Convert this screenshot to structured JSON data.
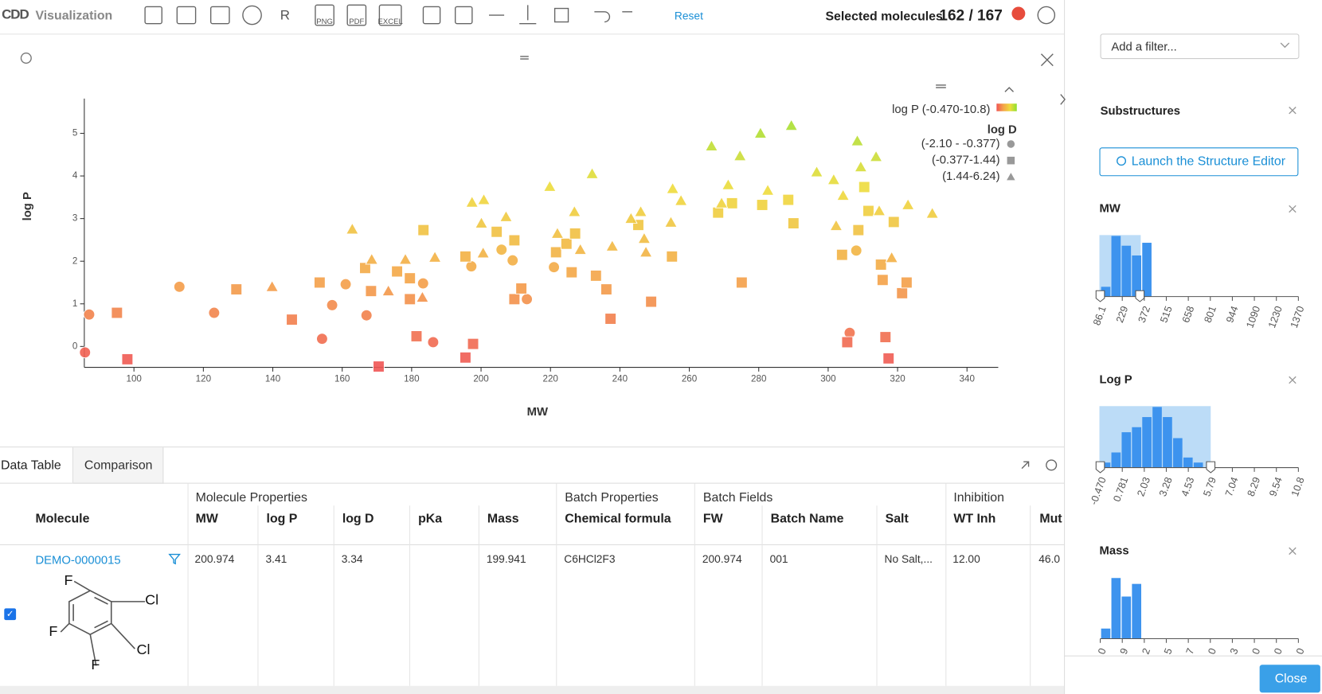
{
  "toolbar": {
    "logo": "CDD",
    "app": "Visualization",
    "buttons": [
      "R",
      "PNG",
      "PDF",
      "EXCEL"
    ],
    "reset": "Reset",
    "selected_label": "Selected molecules",
    "selection": "162 / 167"
  },
  "chart_data": {
    "type": "scatter",
    "xlabel": "MW",
    "ylabel": "log P",
    "xlim": [
      85.7,
      349
    ],
    "ylim": [
      -0.49,
      5.815
    ],
    "xticks": [
      100,
      120,
      140,
      160,
      180,
      200,
      220,
      240,
      260,
      280,
      300,
      320,
      340
    ],
    "yticks": [
      0,
      1,
      2,
      3,
      4,
      5
    ],
    "color_legend": "log P (-0.470-10.8)",
    "color_scale": [
      "#f05454",
      "#f4a448",
      "#eedc3c",
      "#8ee02e"
    ],
    "legend_title": "log D",
    "series": [
      {
        "name": "(-2.10 - -0.377)",
        "marker": "circle",
        "color": "#999999",
        "x": [
          85.9,
          87.1,
          113.1,
          123.1,
          154.2,
          157.1,
          161,
          167,
          183.3,
          186.2,
          197.2,
          205.9,
          209.1,
          213.2,
          221,
          306.2,
          308.1
        ],
        "values": [
          -0.14,
          0.75,
          1.4,
          0.79,
          0.18,
          0.97,
          1.46,
          0.73,
          1.48,
          0.1,
          1.88,
          2.27,
          2.02,
          1.11,
          1.86,
          0.32,
          2.25
        ]
      },
      {
        "name": "(-0.377-1.44)",
        "marker": "square",
        "color": "#999999",
        "x": [
          95.1,
          98.1,
          129.5,
          145.5,
          153.5,
          166.6,
          168.3,
          170.5,
          175.8,
          179.5,
          179.5,
          181.4,
          183.4,
          195.5,
          195.5,
          197.7,
          204.5,
          209.6,
          209.6,
          211.6,
          221.6,
          224.6,
          226.1,
          227.1,
          233.1,
          236.1,
          237.3,
          245.3,
          249,
          255,
          268.3,
          272.3,
          275.1,
          281,
          288.5,
          290,
          304,
          305.5,
          308.7,
          310.4,
          311.6,
          315.2,
          315.7,
          316.5,
          317.4,
          318.9,
          321.3,
          322.6
        ],
        "values": [
          0.79,
          -0.3,
          1.34,
          0.63,
          1.5,
          1.84,
          1.3,
          -0.47,
          1.76,
          1.6,
          1.11,
          0.24,
          2.73,
          2.11,
          -0.26,
          0.06,
          2.69,
          2.49,
          1.11,
          1.36,
          2.21,
          2.41,
          1.74,
          2.65,
          1.66,
          1.34,
          0.65,
          2.85,
          1.05,
          2.11,
          3.14,
          3.36,
          1.5,
          3.32,
          3.44,
          2.89,
          2.15,
          0.1,
          2.73,
          3.74,
          3.18,
          1.92,
          1.56,
          0.22,
          -0.28,
          2.92,
          1.25,
          1.5
        ]
      },
      {
        "name": "(1.44-6.24)",
        "marker": "triangle",
        "color": "#999999",
        "x": [
          139.8,
          162.9,
          168.5,
          173.3,
          178.2,
          183.1,
          186.7,
          197.4,
          200.8,
          200.1,
          200.6,
          207.2,
          219.8,
          222,
          226.9,
          228.6,
          232,
          237.8,
          243.2,
          246,
          247,
          247.5,
          254.7,
          255.2,
          257.6,
          266.4,
          269.3,
          271.2,
          274.6,
          280.5,
          282.6,
          289.4,
          296.7,
          301.6,
          308.4,
          313.8,
          309.4,
          304.3,
          302.3,
          314.7,
          318.3,
          323,
          330
        ],
        "values": [
          1.4,
          2.75,
          2.04,
          1.3,
          2.04,
          1.15,
          2.09,
          3.38,
          3.44,
          2.89,
          2.19,
          3.04,
          3.75,
          2.65,
          3.16,
          2.27,
          4.05,
          2.35,
          3,
          3.16,
          2.53,
          2.21,
          2.91,
          3.7,
          3.42,
          4.7,
          3.36,
          3.79,
          4.47,
          5,
          3.66,
          5.18,
          4.09,
          3.91,
          4.82,
          4.45,
          4.21,
          3.54,
          2.83,
          3.18,
          2.08,
          3.32,
          3.12
        ]
      }
    ]
  },
  "table": {
    "tabs": [
      "Data Table",
      "Comparison"
    ],
    "groups": [
      "Molecule Properties",
      "Batch Properties",
      "Batch Fields",
      "Inhibition"
    ],
    "columns": [
      "Molecule",
      "MW",
      "log P",
      "log D",
      "pKa",
      "Mass",
      "Chemical formula",
      "FW",
      "Batch Name",
      "Salt",
      "WT Inh",
      "Mut"
    ],
    "rows": [
      [
        "DEMO-0000015",
        "200.974",
        "3.41",
        "3.34",
        null,
        "199.941",
        "C6HCl2F3",
        "200.974",
        "001",
        "No Salt,...",
        "12.00",
        "46.0"
      ]
    ],
    "structure_atoms": [
      "F",
      "Cl",
      "F",
      "Cl",
      "F"
    ]
  },
  "sidebar": {
    "filter_placeholder": "Add a filter...",
    "substructures": "Substructures",
    "launch": "Launch the Structure Editor",
    "histograms": [
      {
        "title": "MW",
        "values": [
          10,
          62,
          52,
          42,
          55
        ],
        "xticks": [
          86.1,
          229,
          372,
          515,
          658,
          801,
          944,
          1090,
          1230,
          1370
        ]
      },
      {
        "title": "Log P",
        "values": [
          6,
          18,
          42,
          48,
          60,
          72,
          60,
          35,
          12,
          6
        ],
        "xticks": [
          {
            "value": -0.47,
            "label": "-0.470"
          },
          0.781,
          2.03,
          3.28,
          4.53,
          5.79,
          7.04,
          8.29,
          9.54,
          10.8
        ]
      },
      {
        "title": "Mass",
        "values": [
          12,
          72,
          50,
          65
        ],
        "tick_labels": [
          "0",
          "9",
          "2",
          "5",
          "7",
          "0",
          "3",
          "0",
          "0",
          "0"
        ]
      }
    ],
    "close": "Close"
  }
}
